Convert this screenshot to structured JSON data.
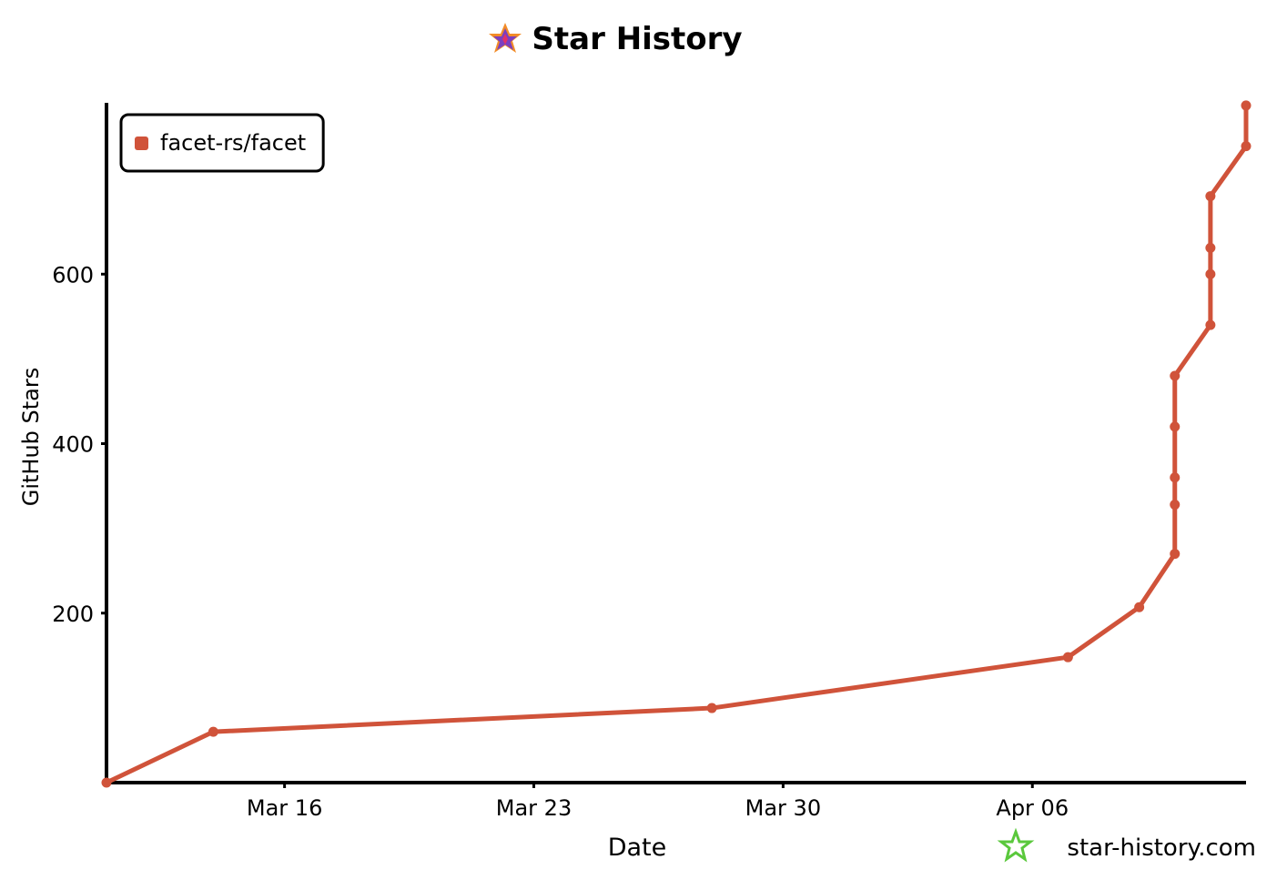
{
  "chart_data": {
    "type": "line",
    "title": "Star History",
    "x_label": "Date",
    "y_label": "GitHub Stars",
    "watermark": "star-history.com",
    "x": [
      "Mar 11",
      "Mar 14",
      "Mar 28",
      "Apr 07",
      "Apr 09",
      "Apr 10",
      "Apr 10",
      "Apr 10",
      "Apr 10",
      "Apr 10",
      "Apr 11",
      "Apr 11",
      "Apr 11",
      "Apr 11",
      "Apr 12",
      "Apr 12"
    ],
    "series": [
      {
        "name": "facet-rs/facet",
        "color": "#d0533a",
        "values": [
          0,
          60,
          88,
          148,
          207,
          270,
          328,
          360,
          420,
          480,
          540,
          600,
          631,
          692,
          751,
          799
        ]
      }
    ],
    "xlim": [
      "Mar 11",
      "Apr 12"
    ],
    "xticks": [
      "Mar 16",
      "Mar 23",
      "Mar 30",
      "Apr 06"
    ],
    "ylim": [
      0,
      800
    ],
    "yticks": [
      200,
      400,
      600
    ],
    "legend": "upper left"
  }
}
